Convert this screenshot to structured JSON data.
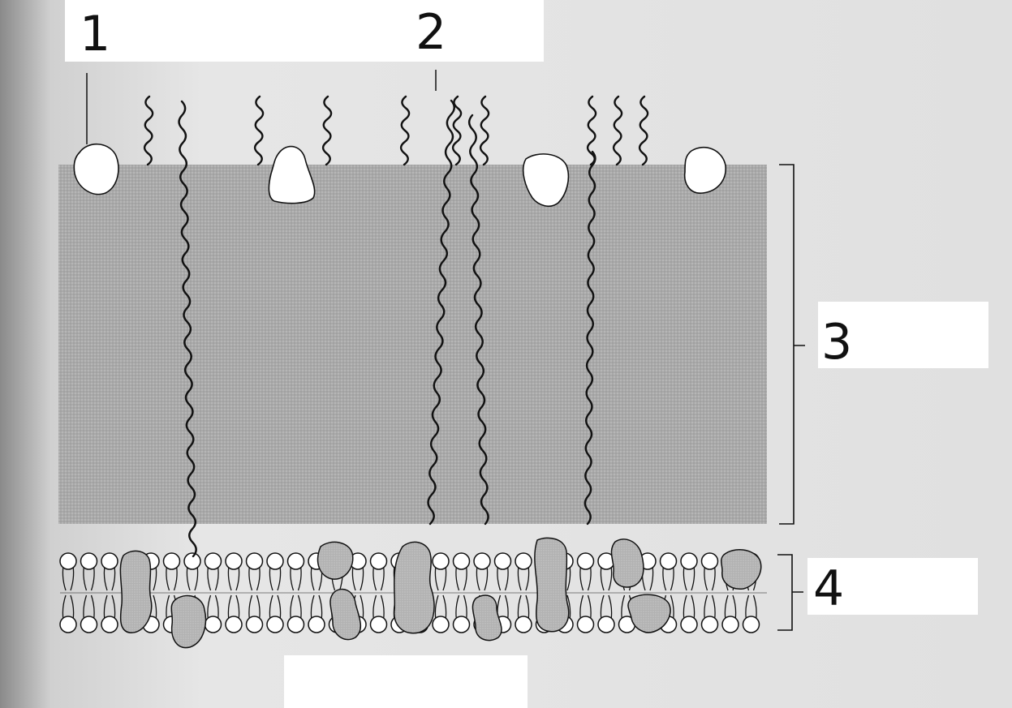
{
  "diagram": {
    "labels": [
      "1",
      "2",
      "3",
      "4"
    ],
    "colors": {
      "page": "#e3e3e3",
      "white_patch": "#ffffff",
      "matrix_fill": "#a9a9a9",
      "protein_fill": "#b4b4b4",
      "line": "#111111",
      "head_fill": "#ffffff"
    }
  }
}
